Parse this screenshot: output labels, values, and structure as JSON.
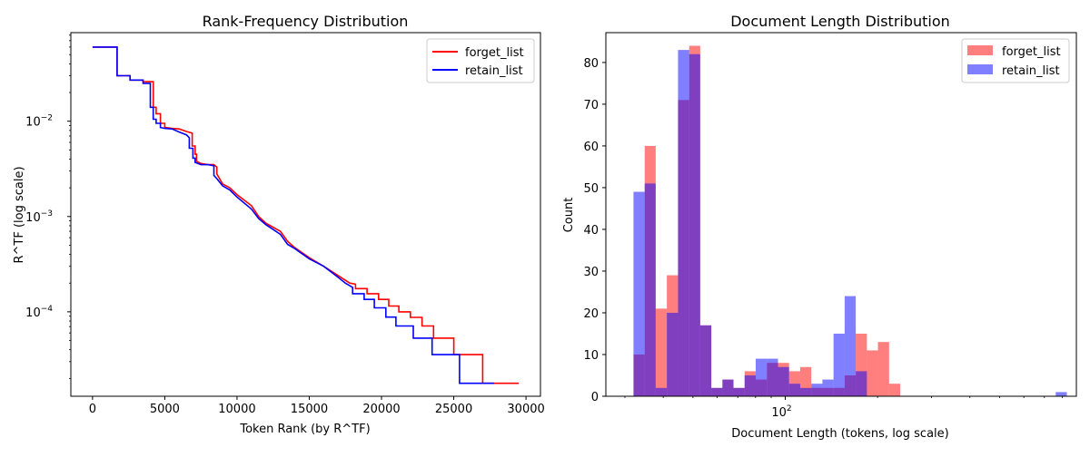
{
  "chart_data": [
    {
      "type": "line",
      "title": "Rank-Frequency Distribution",
      "xlabel": "Token Rank (by R^TF)",
      "ylabel": "R^TF (log scale)",
      "xlim": [
        -1500,
        31000
      ],
      "ylim": [
        1.3e-05,
        0.085
      ],
      "yscale": "log",
      "xticks": [
        0,
        5000,
        10000,
        15000,
        20000,
        25000,
        30000
      ],
      "xtick_labels": [
        "0",
        "5000",
        "10000",
        "15000",
        "20000",
        "25000",
        "30000"
      ],
      "yticks": [
        0.0001,
        0.001,
        0.01
      ],
      "ytick_labels": [
        "10",
        "10",
        "10"
      ],
      "ytick_exponents": [
        "−4",
        "−3",
        "−2"
      ],
      "grid": false,
      "legend_position": "top-right",
      "series": [
        {
          "name": "forget_list",
          "color": "#ff0000",
          "x": [
            0,
            1700,
            1700,
            2600,
            2600,
            3500,
            3500,
            4200,
            4200,
            4400,
            4400,
            4700,
            4700,
            5000,
            5000,
            5500,
            6000,
            6500,
            6900,
            6900,
            7100,
            7100,
            7200,
            7200,
            7500,
            8000,
            8400,
            8600,
            8600,
            9000,
            9500,
            10000,
            11000,
            11500,
            12000,
            13000,
            13500,
            14000,
            15000,
            16000,
            17000,
            17800,
            18200,
            18200,
            19000,
            19000,
            19800,
            19800,
            20500,
            20500,
            21200,
            21200,
            22000,
            22000,
            22800,
            22800,
            23600,
            23600,
            25000,
            25000,
            27000,
            27000,
            29500
          ],
          "y": [
            0.06,
            0.06,
            0.03,
            0.03,
            0.027,
            0.027,
            0.026,
            0.026,
            0.014,
            0.014,
            0.012,
            0.012,
            0.0095,
            0.0095,
            0.0086,
            0.0084,
            0.0083,
            0.0078,
            0.0075,
            0.0055,
            0.0055,
            0.0045,
            0.0045,
            0.0038,
            0.0036,
            0.0035,
            0.0035,
            0.0033,
            0.0028,
            0.0022,
            0.002,
            0.0017,
            0.0013,
            0.001,
            0.00085,
            0.0007,
            0.00055,
            0.00047,
            0.00037,
            0.0003,
            0.00024,
            0.0002,
            0.000195,
            0.000175,
            0.000175,
            0.000155,
            0.000155,
            0.000135,
            0.000135,
            0.000115,
            0.000115,
            0.0001,
            0.0001,
            8.75e-05,
            8.75e-05,
            7.1e-05,
            7.1e-05,
            5.3e-05,
            5.3e-05,
            3.55e-05,
            3.55e-05,
            1.78e-05,
            1.78e-05
          ]
        },
        {
          "name": "retain_list",
          "color": "#0000ff",
          "x": [
            0,
            1700,
            1700,
            2600,
            2600,
            3500,
            3500,
            4000,
            4000,
            4200,
            4200,
            4400,
            4400,
            4700,
            4700,
            5000,
            5500,
            6000,
            6500,
            6700,
            6700,
            6950,
            6950,
            7100,
            7100,
            7500,
            8000,
            8400,
            8400,
            8600,
            9000,
            9500,
            10000,
            11000,
            11500,
            12000,
            13000,
            13500,
            14000,
            15000,
            16000,
            17000,
            17500,
            18000,
            18000,
            18800,
            18800,
            19500,
            19500,
            20300,
            20300,
            21000,
            21000,
            22200,
            22200,
            23500,
            23500,
            25400,
            25400,
            27800
          ],
          "y": [
            0.06,
            0.06,
            0.03,
            0.03,
            0.027,
            0.027,
            0.025,
            0.025,
            0.014,
            0.014,
            0.0105,
            0.0105,
            0.0095,
            0.0095,
            0.0086,
            0.0084,
            0.0083,
            0.0077,
            0.0072,
            0.0067,
            0.0052,
            0.0052,
            0.0041,
            0.0041,
            0.0037,
            0.0035,
            0.0035,
            0.0034,
            0.0027,
            0.0025,
            0.0021,
            0.0019,
            0.0016,
            0.0012,
            0.00095,
            0.00082,
            0.00065,
            0.00051,
            0.00046,
            0.00036,
            0.0003,
            0.00023,
            0.0002,
            0.00018,
            0.000155,
            0.000155,
            0.000135,
            0.000135,
            0.00011,
            0.00011,
            8.8e-05,
            8.8e-05,
            7.1e-05,
            7.1e-05,
            5.3e-05,
            5.3e-05,
            3.55e-05,
            3.55e-05,
            1.78e-05,
            1.78e-05
          ]
        }
      ]
    },
    {
      "type": "histogram",
      "title": "Document Length Distribution",
      "xlabel": "Document Length (tokens, log scale)",
      "ylabel": "Count",
      "xscale": "log",
      "xlim": [
        26,
        890
      ],
      "ylim": [
        0,
        87.15
      ],
      "xticks": [
        100
      ],
      "xtick_labels": [
        "10"
      ],
      "xtick_exponents": [
        "2"
      ],
      "yticks": [
        0,
        10,
        20,
        30,
        40,
        50,
        60,
        70,
        80
      ],
      "ytick_labels": [
        "0",
        "10",
        "20",
        "30",
        "40",
        "50",
        "60",
        "70",
        "80"
      ],
      "grid": false,
      "legend_position": "top-right",
      "bin_edges": [
        32.0,
        34.8,
        37.8,
        41.1,
        44.7,
        48.6,
        52.8,
        57.4,
        62.4,
        67.8,
        73.7,
        80.1,
        87.1,
        94.7,
        102.9,
        111.9,
        121.6,
        132.2,
        143.7,
        156.2,
        169.8,
        184.6,
        200.6,
        218.1,
        237.1,
        257.7,
        280.1,
        304.5,
        331.0,
        359.8,
        391.1,
        425.1,
        462.1,
        502.3,
        546.0,
        593.5,
        645.2,
        701.3,
        762.3,
        828.6
      ],
      "series": [
        {
          "name": "forget_list",
          "color": "#ff0000",
          "alpha": 0.5,
          "values": [
            10,
            60,
            21,
            29,
            71,
            84,
            17,
            2,
            4,
            2,
            6,
            4,
            8,
            8,
            6,
            7,
            2,
            2,
            2,
            5,
            15,
            11,
            13,
            3,
            0,
            0,
            0,
            0,
            0,
            0,
            0,
            0,
            0,
            0,
            0,
            0,
            0,
            0,
            0
          ]
        },
        {
          "name": "retain_list",
          "color": "#0000ff",
          "alpha": 0.5,
          "values": [
            49,
            51,
            2,
            20,
            83,
            82,
            17,
            2,
            4,
            2,
            5,
            9,
            9,
            7,
            3,
            2,
            3,
            4,
            15,
            24,
            6,
            0,
            0,
            0,
            0,
            0,
            0,
            0,
            0,
            0,
            0,
            0,
            0,
            0,
            0,
            0,
            0,
            0,
            1
          ]
        }
      ]
    }
  ]
}
